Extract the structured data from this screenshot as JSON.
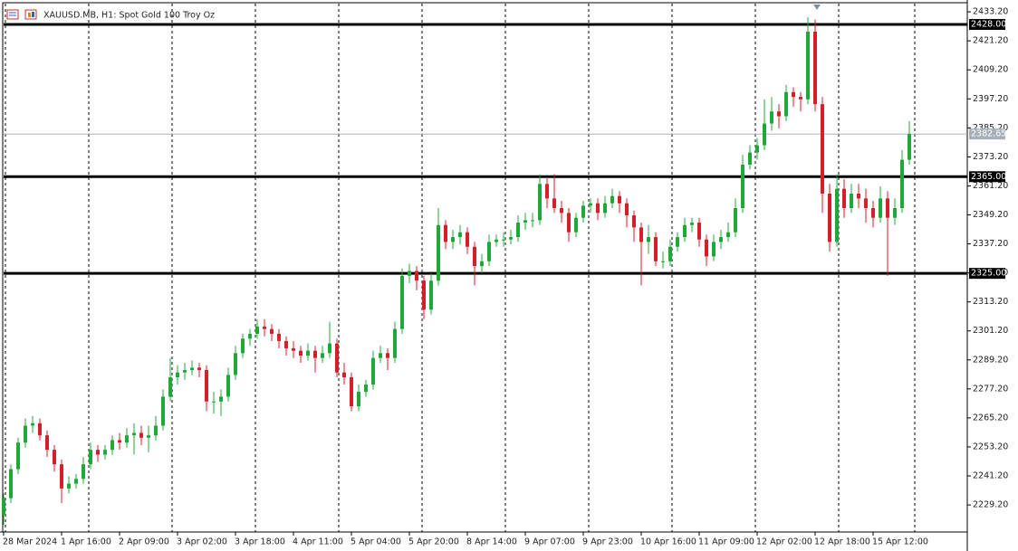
{
  "chart_data": {
    "type": "candlestick",
    "title": "XAUUSD.MB, H1:  Spot Gold 100 Troy Oz",
    "up_color": "#1fa83a",
    "down_color": "#d4202a",
    "ylim": [
      2218.0,
      2438.1
    ],
    "yticks": [
      {
        "value": 2433.2,
        "label": "2433.20"
      },
      {
        "value": 2421.2,
        "label": "2421.20"
      },
      {
        "value": 2409.2,
        "label": "2409.20"
      },
      {
        "value": 2397.2,
        "label": "2397.20"
      },
      {
        "value": 2385.2,
        "label": "2385.20"
      },
      {
        "value": 2373.2,
        "label": "2373.20"
      },
      {
        "value": 2361.2,
        "label": "2361.20"
      },
      {
        "value": 2349.2,
        "label": "2349.20"
      },
      {
        "value": 2337.2,
        "label": "2337.20"
      },
      {
        "value": 2325.2,
        "label": "2325.20"
      },
      {
        "value": 2313.2,
        "label": "2313.20"
      },
      {
        "value": 2301.2,
        "label": "2301.20"
      },
      {
        "value": 2289.2,
        "label": "2289.20"
      },
      {
        "value": 2277.2,
        "label": "2277.20"
      },
      {
        "value": 2265.2,
        "label": "2265.20"
      },
      {
        "value": 2253.2,
        "label": "2253.20"
      },
      {
        "value": 2241.2,
        "label": "2241.20"
      },
      {
        "value": 2229.2,
        "label": "2229.20"
      }
    ],
    "levels": [
      {
        "value": 2428,
        "label": "2428.00"
      },
      {
        "value": 2365,
        "label": "2365.00"
      },
      {
        "value": 2325,
        "label": "2325.00"
      }
    ],
    "current_price": 2382.65,
    "categories": [
      "28 Mar 2024",
      null,
      null,
      null,
      null,
      null,
      null,
      null,
      "1 Apr 16:00",
      null,
      null,
      null,
      null,
      null,
      null,
      null,
      "2 Apr 09:00",
      null,
      null,
      null,
      null,
      null,
      null,
      null,
      "3 Apr 02:00",
      null,
      null,
      null,
      null,
      null,
      null,
      null,
      "3 Apr 18:00",
      null,
      null,
      null,
      null,
      null,
      null,
      null,
      "4 Apr 11:00",
      null,
      null,
      null,
      null,
      null,
      null,
      null,
      "5 Apr 04:00",
      null,
      null,
      null,
      null,
      null,
      null,
      null,
      "5 Apr 20:00",
      null,
      null,
      null,
      null,
      null,
      null,
      null,
      "8 Apr 14:00",
      null,
      null,
      null,
      null,
      null,
      null,
      null,
      "9 Apr 07:00",
      null,
      null,
      null,
      null,
      null,
      null,
      null,
      "9 Apr 23:00",
      null,
      null,
      null,
      null,
      null,
      null,
      null,
      "10 Apr 16:00",
      null,
      null,
      null,
      null,
      null,
      null,
      null,
      "11 Apr 09:00",
      null,
      null,
      null,
      null,
      null,
      null,
      null,
      "12 Apr 02:00",
      null,
      null,
      null,
      null,
      null,
      null,
      null,
      "12 Apr 18:00",
      null,
      null,
      null,
      null,
      null,
      null,
      null,
      "15 Apr 12:00",
      null,
      null,
      null,
      null,
      null
    ],
    "candles": [
      [
        2225,
        2234,
        2221,
        2232
      ],
      [
        2232,
        2246,
        2230,
        2244
      ],
      [
        2244,
        2257,
        2242,
        2255
      ],
      [
        2255,
        2265,
        2253,
        2262
      ],
      [
        2262,
        2266,
        2259,
        2263
      ],
      [
        2263,
        2265,
        2256,
        2258
      ],
      [
        2258,
        2260,
        2249,
        2252
      ],
      [
        2252,
        2254,
        2243,
        2246
      ],
      [
        2246,
        2248,
        2230,
        2236
      ],
      [
        2236,
        2241,
        2234,
        2238
      ],
      [
        2238,
        2242,
        2236,
        2240
      ],
      [
        2240,
        2249,
        2238,
        2246
      ],
      [
        2246,
        2255,
        2244,
        2252
      ],
      [
        2252,
        2254,
        2247,
        2250
      ],
      [
        2250,
        2254,
        2248,
        2252
      ],
      [
        2252,
        2258,
        2250,
        2256
      ],
      [
        2256,
        2259,
        2252,
        2255
      ],
      [
        2255,
        2261,
        2253,
        2258
      ],
      [
        2258,
        2263,
        2250,
        2259
      ],
      [
        2259,
        2262,
        2254,
        2257
      ],
      [
        2257,
        2262,
        2251,
        2258
      ],
      [
        2258,
        2266,
        2256,
        2262
      ],
      [
        2262,
        2277,
        2260,
        2274
      ],
      [
        2274,
        2290,
        2272,
        2282
      ],
      [
        2282,
        2287,
        2279,
        2284
      ],
      [
        2284,
        2288,
        2281,
        2285
      ],
      [
        2285,
        2289,
        2283,
        2286
      ],
      [
        2286,
        2288,
        2282,
        2285
      ],
      [
        2285,
        2287,
        2268,
        2272
      ],
      [
        2272,
        2276,
        2267,
        2272
      ],
      [
        2272,
        2277,
        2266,
        2274
      ],
      [
        2274,
        2286,
        2272,
        2283
      ],
      [
        2283,
        2295,
        2281,
        2292
      ],
      [
        2292,
        2300,
        2290,
        2298
      ],
      [
        2298,
        2302,
        2295,
        2300
      ],
      [
        2300,
        2306,
        2298,
        2303
      ],
      [
        2303,
        2306,
        2299,
        2302
      ],
      [
        2302,
        2304,
        2297,
        2300
      ],
      [
        2300,
        2302,
        2294,
        2297
      ],
      [
        2297,
        2299,
        2291,
        2294
      ],
      [
        2294,
        2297,
        2290,
        2293
      ],
      [
        2293,
        2295,
        2288,
        2291
      ],
      [
        2291,
        2296,
        2289,
        2293
      ],
      [
        2293,
        2295,
        2284,
        2290
      ],
      [
        2290,
        2295,
        2288,
        2292
      ],
      [
        2292,
        2305,
        2290,
        2296
      ],
      [
        2296,
        2298,
        2282,
        2284
      ],
      [
        2284,
        2288,
        2279,
        2282
      ],
      [
        2282,
        2284,
        2268,
        2270
      ],
      [
        2270,
        2279,
        2268,
        2276
      ],
      [
        2276,
        2281,
        2274,
        2279
      ],
      [
        2279,
        2293,
        2277,
        2290
      ],
      [
        2290,
        2295,
        2288,
        2292
      ],
      [
        2292,
        2294,
        2285,
        2290
      ],
      [
        2290,
        2305,
        2288,
        2302
      ],
      [
        2302,
        2327,
        2300,
        2324
      ],
      [
        2324,
        2329,
        2321,
        2326
      ],
      [
        2326,
        2328,
        2318,
        2322
      ],
      [
        2322,
        2324,
        2306,
        2310
      ],
      [
        2310,
        2325,
        2308,
        2322
      ],
      [
        2322,
        2352,
        2320,
        2345
      ],
      [
        2345,
        2347,
        2335,
        2338
      ],
      [
        2338,
        2343,
        2335,
        2340
      ],
      [
        2340,
        2345,
        2337,
        2342
      ],
      [
        2342,
        2344,
        2333,
        2336
      ],
      [
        2336,
        2338,
        2320,
        2328
      ],
      [
        2328,
        2333,
        2325,
        2330
      ],
      [
        2330,
        2341,
        2328,
        2338
      ],
      [
        2338,
        2341,
        2336,
        2339
      ],
      [
        2339,
        2342,
        2336,
        2339
      ],
      [
        2339,
        2343,
        2337,
        2340
      ],
      [
        2340,
        2349,
        2338,
        2346
      ],
      [
        2346,
        2350,
        2343,
        2347
      ],
      [
        2347,
        2350,
        2344,
        2347
      ],
      [
        2347,
        2366,
        2345,
        2362
      ],
      [
        2362,
        2365,
        2352,
        2356
      ],
      [
        2356,
        2366,
        2350,
        2352
      ],
      [
        2352,
        2355,
        2346,
        2350
      ],
      [
        2350,
        2352,
        2338,
        2342
      ],
      [
        2342,
        2350,
        2340,
        2348
      ],
      [
        2348,
        2355,
        2346,
        2353
      ],
      [
        2353,
        2356,
        2350,
        2354
      ],
      [
        2354,
        2356,
        2347,
        2350
      ],
      [
        2350,
        2357,
        2348,
        2354
      ],
      [
        2354,
        2360,
        2352,
        2357
      ],
      [
        2357,
        2359,
        2350,
        2354
      ],
      [
        2354,
        2356,
        2344,
        2349
      ],
      [
        2349,
        2351,
        2338,
        2344
      ],
      [
        2344,
        2346,
        2320,
        2338
      ],
      [
        2338,
        2345,
        2333,
        2340
      ],
      [
        2340,
        2342,
        2328,
        2330
      ],
      [
        2330,
        2334,
        2327,
        2330
      ],
      [
        2330,
        2339,
        2328,
        2336
      ],
      [
        2336,
        2342,
        2334,
        2340
      ],
      [
        2340,
        2348,
        2338,
        2345
      ],
      [
        2345,
        2348,
        2342,
        2346
      ],
      [
        2346,
        2348,
        2336,
        2339
      ],
      [
        2339,
        2341,
        2328,
        2332
      ],
      [
        2332,
        2341,
        2330,
        2338
      ],
      [
        2338,
        2343,
        2335,
        2340
      ],
      [
        2340,
        2346,
        2338,
        2342
      ],
      [
        2342,
        2356,
        2340,
        2352
      ],
      [
        2352,
        2374,
        2350,
        2370
      ],
      [
        2370,
        2378,
        2368,
        2375
      ],
      [
        2375,
        2381,
        2372,
        2378
      ],
      [
        2378,
        2397,
        2376,
        2387
      ],
      [
        2387,
        2398,
        2384,
        2392
      ],
      [
        2392,
        2395,
        2385,
        2390
      ],
      [
        2390,
        2403,
        2388,
        2400
      ],
      [
        2400,
        2402,
        2394,
        2398
      ],
      [
        2398,
        2400,
        2392,
        2397
      ],
      [
        2397,
        2431,
        2395,
        2425
      ],
      [
        2425,
        2430,
        2392,
        2395
      ],
      [
        2395,
        2398,
        2350,
        2358
      ],
      [
        2358,
        2362,
        2334,
        2338
      ],
      [
        2338,
        2366,
        2336,
        2360
      ],
      [
        2360,
        2364,
        2348,
        2352
      ],
      [
        2352,
        2362,
        2350,
        2358
      ],
      [
        2358,
        2362,
        2352,
        2356
      ],
      [
        2356,
        2360,
        2346,
        2352
      ],
      [
        2352,
        2355,
        2344,
        2348
      ],
      [
        2348,
        2361,
        2346,
        2356
      ],
      [
        2356,
        2359,
        2324,
        2348
      ],
      [
        2348,
        2356,
        2345,
        2352
      ],
      [
        2352,
        2376,
        2350,
        2372
      ],
      [
        2372,
        2388,
        2370,
        2382.65
      ]
    ]
  }
}
